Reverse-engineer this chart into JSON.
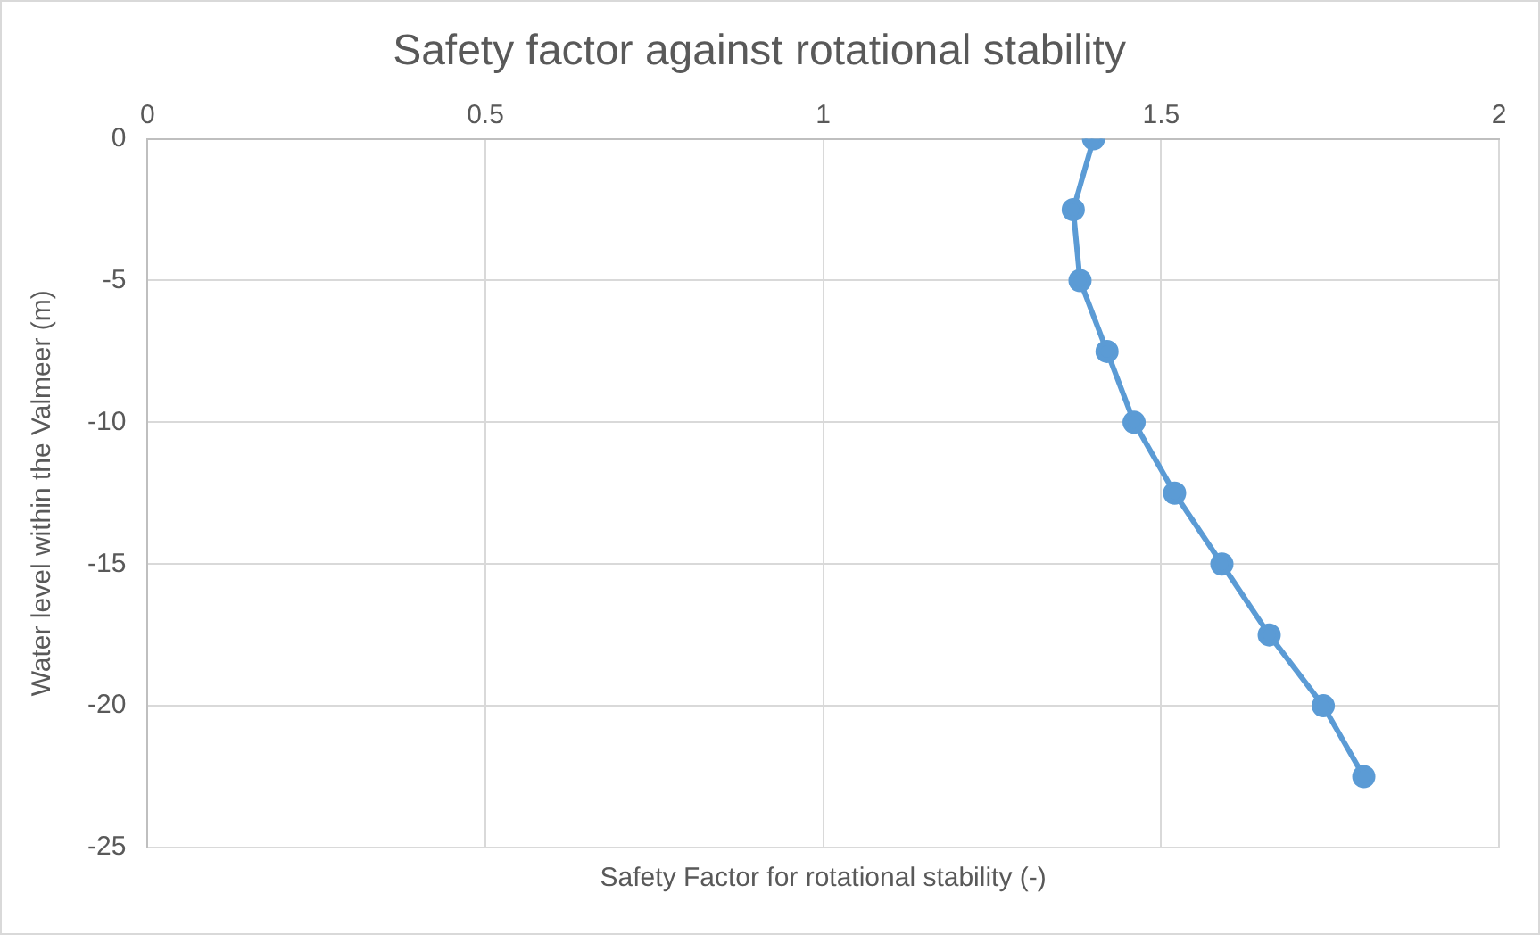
{
  "chart_data": {
    "type": "line",
    "title": "Safety factor against rotational stability",
    "xlabel": "Safety Factor for rotational stability (-)",
    "ylabel": "Water level within the Valmeer (m)",
    "series": [
      {
        "color": "#5b9bd5",
        "x": [
          1.4,
          1.37,
          1.38,
          1.42,
          1.46,
          1.52,
          1.59,
          1.66,
          1.74,
          1.8
        ],
        "values": [
          0,
          -2.5,
          -5,
          -7.5,
          -10,
          -12.5,
          -15,
          -17.5,
          -20,
          -22.5
        ]
      }
    ],
    "xlim": [
      0,
      2
    ],
    "xticks": [
      0,
      0.5,
      1,
      1.5,
      2
    ],
    "ylim": [
      -25,
      0
    ],
    "yticks": [
      -25,
      -20,
      -15,
      -10,
      -5,
      0
    ],
    "grid": true,
    "legend": false,
    "marker": "circle",
    "line_style": "solid"
  }
}
